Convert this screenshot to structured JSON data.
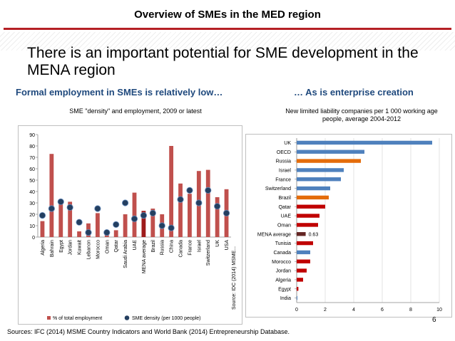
{
  "slide": {
    "title": "Overview of SMEs in the MED region",
    "headline": "There is an important potential for SME development in the MENA region",
    "left_subhead": "Formal employment in SMEs is relatively low…",
    "right_subhead": "… As is enterprise creation",
    "sources": "Sources: IFC (2014) MSME Country Indicators and World Bank (2014) Entrepreneurship Database.",
    "page_number": "6"
  },
  "colors": {
    "title_rule": "#b52025",
    "subhead": "#1f497d",
    "employment_bar": "#c0504d",
    "employment_highlight": "#9e1b1b",
    "density_marker": "#243f60",
    "bar_blue": "#4f81bd",
    "bar_orange": "#e46c0a",
    "bar_red": "#c00000",
    "bar_dark": "#632523"
  },
  "chart_data": [
    {
      "type": "bar",
      "title": "SME \"density\" and employment, 2009 or latest",
      "categories": [
        "Algeria",
        "Bahrain",
        "Egypt",
        "Jordan",
        "Kuwait",
        "Lebanon",
        "Morocco",
        "Oman",
        "Qatar",
        "Saudi Arabia",
        "UAE",
        "MENA average",
        "Brazil",
        "Russia",
        "China",
        "Canada",
        "France",
        "Israel",
        "Switzerland",
        "UK",
        "USA"
      ],
      "highlight": "MENA average",
      "ylim": [
        0,
        90
      ],
      "yticks": [
        0,
        10,
        20,
        30,
        40,
        50,
        60,
        70,
        80,
        90
      ],
      "source_note": "Source:  IDC (2014) MSME...",
      "series": [
        {
          "name": "% of total employment",
          "kind": "bar",
          "values": [
            14,
            73,
            30,
            31,
            5,
            12,
            21,
            6,
            6,
            20,
            39,
            23,
            25,
            20,
            80,
            47,
            38,
            58,
            59,
            35,
            42
          ]
        },
        {
          "name": "SME density (per 1000 people)",
          "kind": "marker",
          "values": [
            19,
            25,
            31,
            26,
            13,
            4,
            25,
            4,
            11,
            30,
            16,
            19,
            21,
            10,
            8,
            33,
            41,
            30,
            41,
            27,
            21
          ]
        }
      ]
    },
    {
      "type": "bar",
      "orientation": "horizontal",
      "title": "New limited liability companies per 1 000 working age people, average 2004-2012",
      "categories": [
        "UK",
        "OECD",
        "Russia",
        "Israel",
        "France",
        "Switzerland",
        "Brazil",
        "Qatar",
        "UAE",
        "Oman",
        "MENA average",
        "Tunisia",
        "Canada",
        "Morocco",
        "Jordan",
        "Algeria",
        "Egypt",
        "India"
      ],
      "values": [
        9.5,
        4.75,
        4.5,
        3.3,
        3.1,
        2.35,
        2.25,
        2.0,
        1.6,
        1.5,
        0.63,
        1.15,
        0.95,
        0.95,
        0.7,
        0.45,
        0.12,
        0.05
      ],
      "bar_colors": [
        "blue",
        "blue",
        "orange",
        "blue",
        "blue",
        "blue",
        "orange",
        "red",
        "red",
        "red",
        "dark",
        "red",
        "blue",
        "red",
        "red",
        "red",
        "red",
        "blue"
      ],
      "annotation": {
        "category": "MENA average",
        "label": "0.63"
      },
      "xlim": [
        0,
        10
      ],
      "xticks": [
        0,
        2,
        4,
        6,
        8,
        10
      ]
    }
  ]
}
